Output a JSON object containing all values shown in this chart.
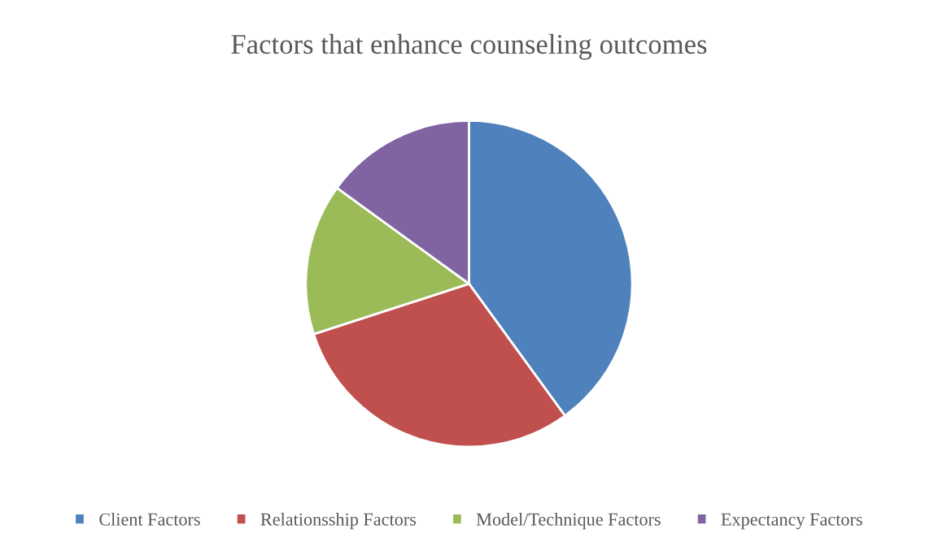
{
  "chart_data": {
    "type": "pie",
    "title": "Factors that enhance counseling outcomes",
    "categories": [
      "Client Factors",
      "Relationsship Factors",
      "Model/Technique Factors",
      "Expectancy Factors"
    ],
    "values": [
      40,
      30,
      15,
      15
    ],
    "colors": [
      "#4f81bd",
      "#c0504d",
      "#9bbb59",
      "#8064a2"
    ],
    "legend": "bottom"
  }
}
